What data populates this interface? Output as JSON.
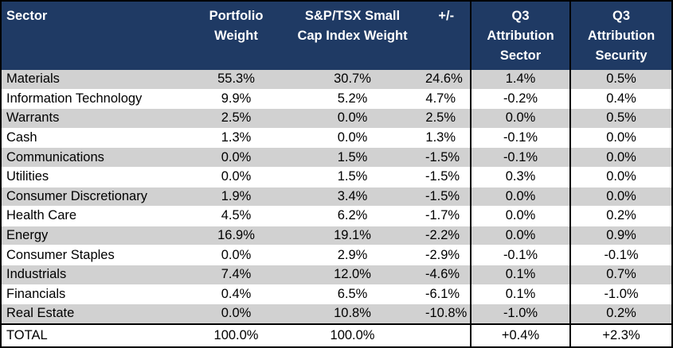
{
  "headers": [
    "Sector",
    "Portfolio\nWeight",
    "S&P/TSX Small\nCap Index Weight",
    "+/-",
    "Q3\nAttribution\nSector",
    "Q3\nAttribution\nSecurity"
  ],
  "rows": [
    [
      "Materials",
      "55.3%",
      "30.7%",
      "24.6%",
      "1.4%",
      "0.5%"
    ],
    [
      "Information Technology",
      "9.9%",
      "5.2%",
      "4.7%",
      "-0.2%",
      "0.4%"
    ],
    [
      "Warrants",
      "2.5%",
      "0.0%",
      "2.5%",
      "0.0%",
      "0.5%"
    ],
    [
      "Cash",
      "1.3%",
      "0.0%",
      "1.3%",
      "-0.1%",
      "0.0%"
    ],
    [
      "Communications",
      "0.0%",
      "1.5%",
      "-1.5%",
      "-0.1%",
      "0.0%"
    ],
    [
      "Utilities",
      "0.0%",
      "1.5%",
      "-1.5%",
      "0.3%",
      "0.0%"
    ],
    [
      "Consumer Discretionary",
      "1.9%",
      "3.4%",
      "-1.5%",
      "0.0%",
      "0.0%"
    ],
    [
      "Health Care",
      "4.5%",
      "6.2%",
      "-1.7%",
      "0.0%",
      "0.2%"
    ],
    [
      "Energy",
      "16.9%",
      "19.1%",
      "-2.2%",
      "0.0%",
      "0.9%"
    ],
    [
      "Consumer Staples",
      "0.0%",
      "2.9%",
      "-2.9%",
      "-0.1%",
      "-0.1%"
    ],
    [
      "Industrials",
      "7.4%",
      "12.0%",
      "-4.6%",
      "0.1%",
      "0.7%"
    ],
    [
      "Financials",
      "0.4%",
      "6.5%",
      "-6.1%",
      "0.1%",
      "-1.0%"
    ],
    [
      "Real Estate",
      "0.0%",
      "10.8%",
      "-10.8%",
      "-1.0%",
      "0.2%"
    ]
  ],
  "total": [
    "TOTAL",
    "100.0%",
    "100.0%",
    "",
    "+0.4%",
    "+2.3%"
  ]
}
